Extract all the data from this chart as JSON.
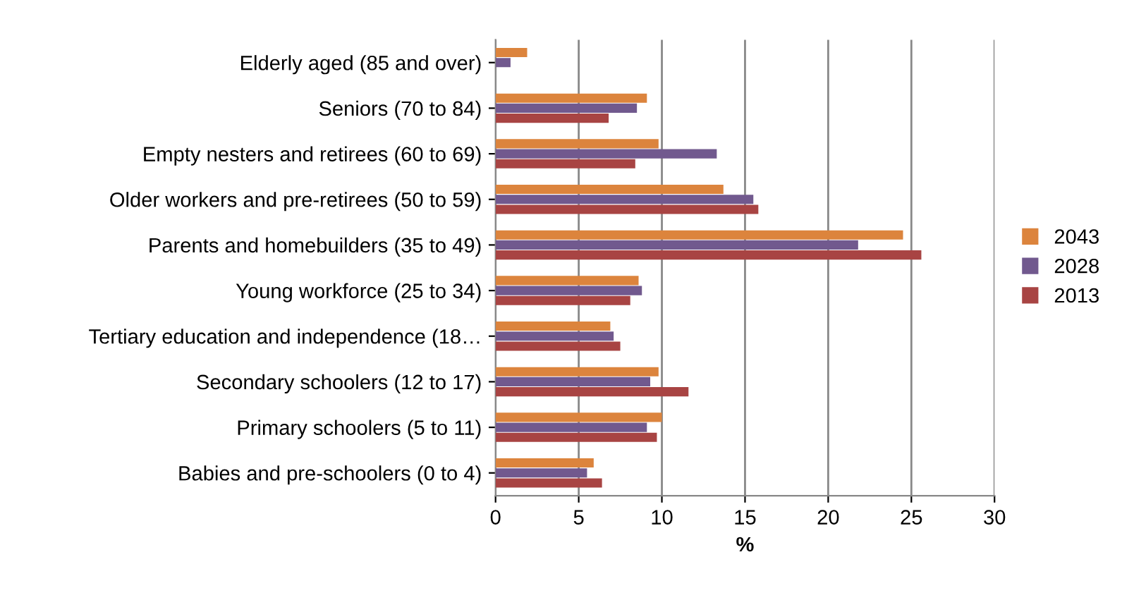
{
  "chart_data": {
    "type": "bar",
    "orientation": "horizontal",
    "xlabel": "%",
    "categories": [
      "Elderly aged (85 and over)",
      "Seniors (70 to 84)",
      "Empty nesters and retirees (60 to 69)",
      "Older workers and pre-retirees (50 to 59)",
      "Parents and homebuilders (35 to 49)",
      "Young workforce (25 to 34)",
      "Tertiary education and independence (18…",
      "Secondary schoolers (12 to 17)",
      "Primary schoolers (5 to 11)",
      "Babies and pre-schoolers (0 to 4)"
    ],
    "series": [
      {
        "name": "2043",
        "color": "#dc843d",
        "values": [
          1.9,
          9.1,
          9.8,
          13.7,
          24.5,
          8.6,
          6.9,
          9.8,
          10.0,
          5.9
        ]
      },
      {
        "name": "2028",
        "color": "#71598e",
        "values": [
          0.9,
          8.5,
          13.3,
          15.5,
          21.8,
          8.8,
          7.1,
          9.3,
          9.1,
          5.5
        ]
      },
      {
        "name": "2013",
        "color": "#a84443",
        "values": [
          0,
          6.8,
          8.4,
          15.8,
          25.6,
          8.1,
          7.5,
          11.6,
          9.7,
          6.4
        ]
      }
    ],
    "xlim": [
      0,
      30
    ],
    "xticks": [
      0,
      5,
      10,
      15,
      20,
      25,
      30
    ],
    "grid": "x",
    "legend": "right"
  }
}
